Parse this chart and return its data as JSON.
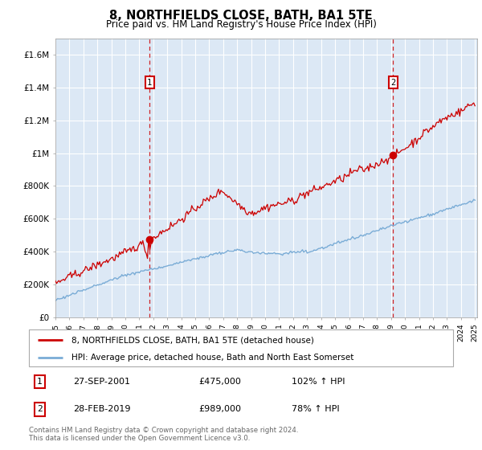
{
  "title": "8, NORTHFIELDS CLOSE, BATH, BA1 5TE",
  "subtitle": "Price paid vs. HM Land Registry's House Price Index (HPI)",
  "plot_bg_color": "#dce8f5",
  "red_line_label": "8, NORTHFIELDS CLOSE, BATH, BA1 5TE (detached house)",
  "blue_line_label": "HPI: Average price, detached house, Bath and North East Somerset",
  "transaction1_price": 475000,
  "transaction1_label": "27-SEP-2001",
  "transaction1_pct": "102% ↑ HPI",
  "transaction2_price": 989000,
  "transaction2_label": "28-FEB-2019",
  "transaction2_pct": "78% ↑ HPI",
  "footnote": "Contains HM Land Registry data © Crown copyright and database right 2024.\nThis data is licensed under the Open Government Licence v3.0.",
  "red_color": "#cc0000",
  "blue_color": "#7aacd6",
  "dashed_color": "#cc0000",
  "marker_box_color": "#cc0000",
  "yticks": [
    0,
    200000,
    400000,
    600000,
    800000,
    1000000,
    1200000,
    1400000,
    1600000
  ],
  "ytick_labels": [
    "£0",
    "£200K",
    "£400K",
    "£600K",
    "£800K",
    "£1M",
    "£1.2M",
    "£1.4M",
    "£1.6M"
  ],
  "ylim": [
    0,
    1700000
  ],
  "red_seed": 42,
  "blue_seed": 99
}
